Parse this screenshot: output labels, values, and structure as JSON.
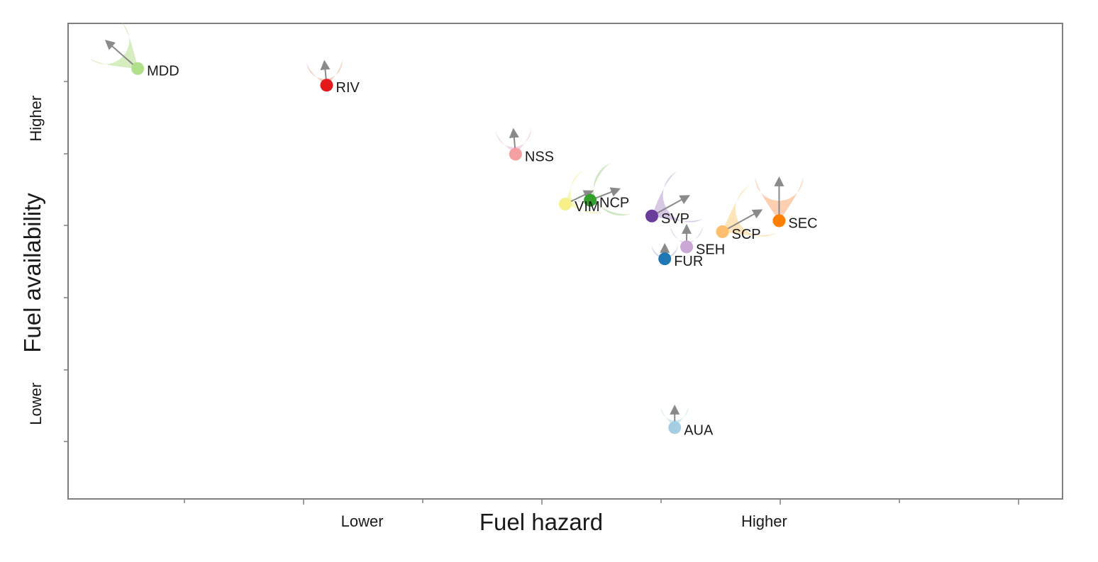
{
  "chart_data": {
    "type": "scatter",
    "title": "",
    "xlabel": "Fuel hazard",
    "ylabel": "Fuel availability",
    "x_tick_labels": [
      {
        "value": 2.95,
        "label": "Lower"
      },
      {
        "value": 7.0,
        "label": "Higher"
      }
    ],
    "y_tick_labels": [
      {
        "value": 2.0,
        "label": "Lower"
      },
      {
        "value": 8.0,
        "label": "Higher"
      }
    ],
    "xlim": [
      0,
      10
    ],
    "ylim": [
      0,
      10
    ],
    "points": [
      {
        "label": "MDD",
        "x": 0.7,
        "y": 9.05,
        "x_to": 0.4,
        "y_to": 9.6,
        "color": "#b2df8a",
        "plume_color": "#b2df8a",
        "plume_size": 1.0
      },
      {
        "label": "RIV",
        "x": 2.6,
        "y": 8.7,
        "x_to": 2.58,
        "y_to": 9.15,
        "color": "#e31a1c",
        "plume_color": "#e8a080",
        "plume_size": 0.6
      },
      {
        "label": "NSS",
        "x": 4.5,
        "y": 7.25,
        "x_to": 4.48,
        "y_to": 7.72,
        "color": "#f4a0a0",
        "plume_color": "#e8b6d8",
        "plume_size": 0.6
      },
      {
        "label": "VIM",
        "x": 5.0,
        "y": 6.2,
        "x_to": 5.25,
        "y_to": 6.45,
        "color": "#f7f08a",
        "plume_color": "#f2ee90",
        "plume_size": 0.9
      },
      {
        "label": "NCP",
        "x": 5.25,
        "y": 6.28,
        "x_to": 5.52,
        "y_to": 6.5,
        "color": "#33a02c",
        "plume_color": "#a6d38e",
        "plume_size": 1.2
      },
      {
        "label": "SVP",
        "x": 5.87,
        "y": 5.95,
        "x_to": 6.22,
        "y_to": 6.35,
        "color": "#6a3d9a",
        "plume_color": "#b89ad0",
        "plume_size": 1.2
      },
      {
        "label": "SEH",
        "x": 6.22,
        "y": 5.3,
        "x_to": 6.22,
        "y_to": 5.7,
        "color": "#c9a8d6",
        "plume_color": "#d4bce2",
        "plume_size": 0.5
      },
      {
        "label": "FUR",
        "x": 6.0,
        "y": 5.05,
        "x_to": 6.0,
        "y_to": 5.3,
        "color": "#1f78b4",
        "plume_color": "#a6b6d8",
        "plume_size": 0.3
      },
      {
        "label": "SCP",
        "x": 6.58,
        "y": 5.62,
        "x_to": 6.95,
        "y_to": 6.05,
        "color": "#fdbf6f",
        "plume_color": "#fdcf7f",
        "plume_size": 1.2
      },
      {
        "label": "SEC",
        "x": 7.15,
        "y": 5.85,
        "x_to": 7.15,
        "y_to": 6.7,
        "color": "#ff7f00",
        "plume_color": "#f9a870",
        "plume_size": 1.0
      },
      {
        "label": "AUA",
        "x": 6.1,
        "y": 1.5,
        "x_to": 6.1,
        "y_to": 1.9,
        "color": "#a6cee3",
        "plume_color": "#a6dbe6",
        "plume_size": 0.35
      }
    ],
    "grid": false,
    "legend": "none"
  }
}
